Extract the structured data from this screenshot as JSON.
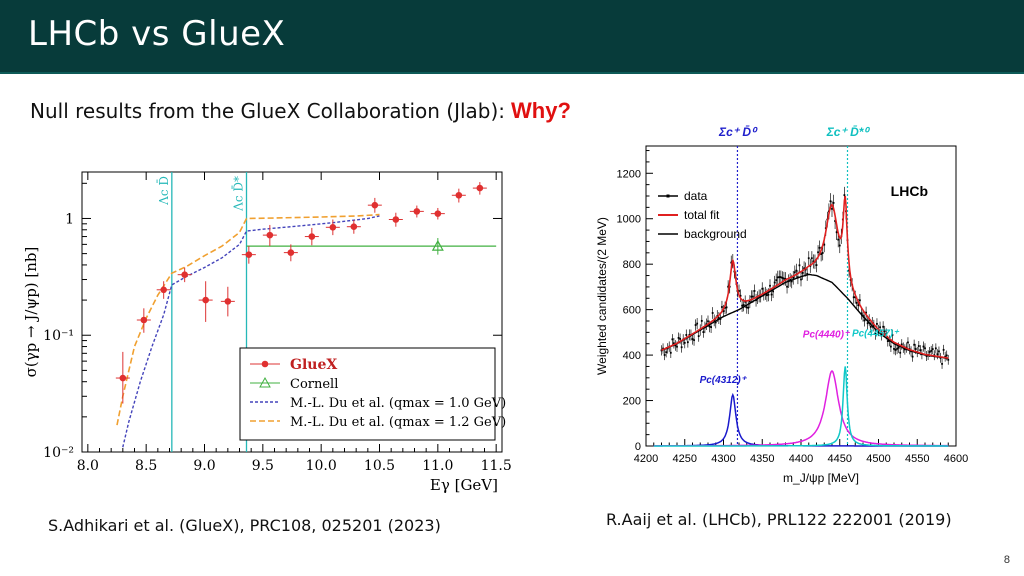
{
  "slide": {
    "title": "LHCb vs GlueX",
    "subtitle": "Null results from the GlueX Collaboration (Jlab):",
    "why": "Why?",
    "left_citation": "S.Adhikari et al. (GlueX), PRC108, 025201 (2023)",
    "right_citation": "R.Aaij et al. (LHCb), PRL122 222001 (2019)",
    "page_number": "8"
  },
  "chart_data": [
    {
      "type": "scatter",
      "ylabel": "σ(γp → J/ψp) [nb]",
      "xlabel": "Eγ [GeV]",
      "xlim": [
        7.95,
        11.55
      ],
      "ylim": [
        0.01,
        2.5
      ],
      "yscale": "log",
      "x_ticks": [
        "8.0",
        "8.5",
        "9.0",
        "9.5",
        "10.0",
        "10.5",
        "11.0",
        "11.5"
      ],
      "y_ticks": [
        "10⁻²",
        "10⁻¹",
        "1"
      ],
      "thresholds": [
        {
          "label": "Λc D̄",
          "x": 8.72
        },
        {
          "label": "Λc D̄*",
          "x": 9.36
        }
      ],
      "legend": {
        "position": "lower-right",
        "entries": [
          "GlueX",
          "Cornell",
          "M.-L. Du et al. (qmax = 1.0 GeV)",
          "M.-L. Du et al. (qmax = 1.2 GeV)"
        ]
      },
      "gluex_points": [
        {
          "x": 8.3,
          "y": 0.043,
          "lo": 0.026,
          "hi": 0.072
        },
        {
          "x": 8.48,
          "y": 0.135,
          "lo": 0.105,
          "hi": 0.17
        },
        {
          "x": 8.65,
          "y": 0.245,
          "lo": 0.205,
          "hi": 0.29
        },
        {
          "x": 8.83,
          "y": 0.33,
          "lo": 0.285,
          "hi": 0.38
        },
        {
          "x": 9.01,
          "y": 0.2,
          "lo": 0.13,
          "hi": 0.29
        },
        {
          "x": 9.2,
          "y": 0.195,
          "lo": 0.145,
          "hi": 0.26
        },
        {
          "x": 9.38,
          "y": 0.49,
          "lo": 0.41,
          "hi": 0.58
        },
        {
          "x": 9.56,
          "y": 0.72,
          "lo": 0.58,
          "hi": 0.88
        },
        {
          "x": 9.74,
          "y": 0.51,
          "lo": 0.43,
          "hi": 0.6
        },
        {
          "x": 9.92,
          "y": 0.7,
          "lo": 0.59,
          "hi": 0.83
        },
        {
          "x": 10.1,
          "y": 0.84,
          "lo": 0.72,
          "hi": 0.98
        },
        {
          "x": 10.28,
          "y": 0.85,
          "lo": 0.74,
          "hi": 0.97
        },
        {
          "x": 10.46,
          "y": 1.3,
          "lo": 1.12,
          "hi": 1.5
        },
        {
          "x": 10.64,
          "y": 0.98,
          "lo": 0.85,
          "hi": 1.12
        },
        {
          "x": 10.82,
          "y": 1.15,
          "lo": 1.02,
          "hi": 1.29
        },
        {
          "x": 11.0,
          "y": 1.1,
          "lo": 0.98,
          "hi": 1.23
        },
        {
          "x": 11.18,
          "y": 1.58,
          "lo": 1.37,
          "hi": 1.8
        },
        {
          "x": 11.36,
          "y": 1.82,
          "lo": 1.6,
          "hi": 2.05
        }
      ],
      "cornell": {
        "x": [
          9.36,
          11.5
        ],
        "y": 0.58,
        "point": {
          "x": 11.0,
          "y": 0.58,
          "lo": 0.49,
          "hi": 0.68
        }
      },
      "du_q10": {
        "x": [
          8.3,
          8.35,
          8.45,
          8.55,
          8.65,
          8.72,
          8.85,
          9.0,
          9.15,
          9.3,
          9.36,
          9.5,
          9.8,
          10.1,
          10.4,
          10.5
        ],
        "y": [
          0.011,
          0.018,
          0.04,
          0.08,
          0.15,
          0.27,
          0.32,
          0.38,
          0.46,
          0.6,
          0.78,
          0.81,
          0.86,
          0.92,
          1.0,
          1.05
        ]
      },
      "du_q12": {
        "x": [
          8.25,
          8.3,
          8.4,
          8.5,
          8.6,
          8.72,
          8.85,
          9.0,
          9.15,
          9.3,
          9.36,
          9.6,
          10.0,
          10.3,
          10.5
        ],
        "y": [
          0.017,
          0.03,
          0.08,
          0.14,
          0.22,
          0.34,
          0.39,
          0.48,
          0.58,
          0.76,
          1.0,
          1.01,
          1.03,
          1.05,
          1.08
        ]
      }
    },
    {
      "type": "line",
      "ylabel": "Weighted candidates/(2 MeV)",
      "xlabel": "m_J/ψp [MeV]",
      "xlim": [
        4200,
        4600
      ],
      "ylim": [
        0,
        1320
      ],
      "x_ticks": [
        "4200",
        "4250",
        "4300",
        "4350",
        "4400",
        "4450",
        "4500",
        "4550",
        "4600"
      ],
      "y_ticks": [
        "0",
        "200",
        "400",
        "600",
        "800",
        "1000",
        "1200"
      ],
      "experiment": "LHCb",
      "legend": {
        "position": "top-left",
        "entries": [
          "data",
          "total fit",
          "background"
        ]
      },
      "thresholds": [
        {
          "label": "Σc⁺ D̄⁰",
          "x": 4318
        },
        {
          "label": "Σc⁺ D̄*⁰",
          "x": 4460
        }
      ],
      "states": [
        {
          "name": "Pc(4312)⁺",
          "mass": 4312,
          "width": 9.8,
          "peak": 225,
          "color": "#1a1acc"
        },
        {
          "name": "Pc(4440)⁺",
          "mass": 4440,
          "width": 20.6,
          "peak": 330,
          "color": "#e020e0"
        },
        {
          "name": "Pc(4457)⁺",
          "mass": 4457,
          "width": 6.4,
          "peak": 350,
          "color": "#10c8c8"
        }
      ],
      "background": {
        "x": [
          4220,
          4240,
          4260,
          4280,
          4300,
          4320,
          4340,
          4360,
          4380,
          4400,
          4410,
          4420,
          4440,
          4460,
          4480,
          4500,
          4520,
          4540,
          4560,
          4580,
          4590
        ],
        "y": [
          420,
          450,
          490,
          530,
          570,
          600,
          640,
          680,
          720,
          745,
          755,
          750,
          720,
          650,
          570,
          500,
          450,
          420,
          400,
          390,
          385
        ]
      },
      "data_noise_seed": 7
    }
  ]
}
